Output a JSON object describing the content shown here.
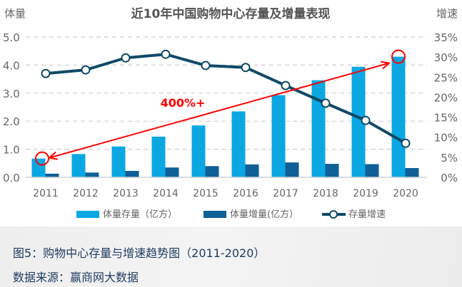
{
  "chart_data": {
    "type": "bar",
    "title": "近10年中国购物中心存量及增量表现",
    "ylabel": "体量",
    "y2label": "增速",
    "categories": [
      "2011",
      "2012",
      "2013",
      "2014",
      "2015",
      "2016",
      "2017",
      "2018",
      "2019",
      "2020"
    ],
    "ylim": [
      0,
      5.0
    ],
    "yticks": [
      "0.0",
      "1.0",
      "2.0",
      "3.0",
      "4.0",
      "5.0"
    ],
    "y2lim": [
      0,
      35
    ],
    "y2ticks": [
      "0%",
      "5%",
      "10%",
      "15%",
      "20%",
      "25%",
      "30%",
      "35%"
    ],
    "grid": true,
    "series": [
      {
        "name": "体量存量（亿方）",
        "type": "bar",
        "color": "#0aa7e3",
        "values": [
          0.67,
          0.83,
          1.1,
          1.45,
          1.85,
          2.35,
          2.93,
          3.46,
          3.94,
          4.3
        ]
      },
      {
        "name": "体量增量(亿方）",
        "type": "bar",
        "color": "#0e6097",
        "values": [
          0.13,
          0.17,
          0.23,
          0.35,
          0.4,
          0.46,
          0.53,
          0.48,
          0.47,
          0.33
        ]
      },
      {
        "name": "存量增速",
        "type": "line",
        "axis": "right",
        "color": "#0f4a66",
        "values": [
          25.9,
          26.8,
          29.8,
          30.7,
          27.9,
          27.4,
          22.9,
          18.5,
          14.2,
          8.5
        ]
      }
    ],
    "legend": "bottom",
    "annotation": {
      "text": "400%+",
      "color": "#ff0000",
      "from_category": "2011",
      "to_category": "2020"
    }
  },
  "caption": {
    "figure": "图5：购物中心存量与增速趋势图（2011-2020）",
    "source": "数据来源：赢商网大数据"
  }
}
